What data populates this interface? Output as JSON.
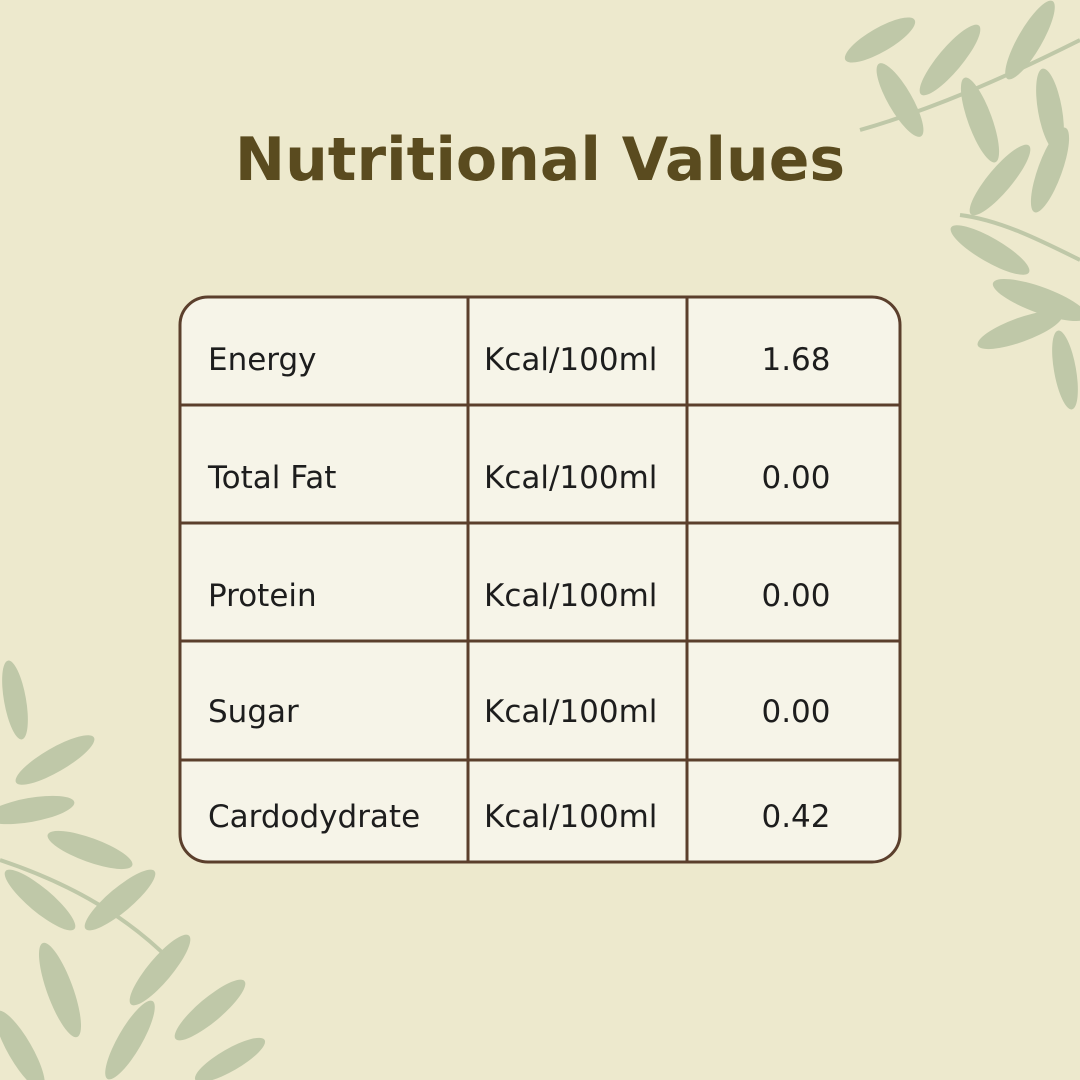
{
  "header": {
    "title": "Nutritional Values"
  },
  "table": {
    "rows": [
      [
        "Energy",
        "Kcal/100ml",
        "1.68"
      ],
      [
        "Total Fat",
        "Kcal/100ml",
        "0.00"
      ],
      [
        "Protein",
        "Kcal/100ml",
        "0.00"
      ],
      [
        "Sugar",
        "Kcal/100ml",
        "0.00"
      ],
      [
        "Cardodydrate",
        "Kcal/100ml",
        "0.42"
      ]
    ]
  }
}
